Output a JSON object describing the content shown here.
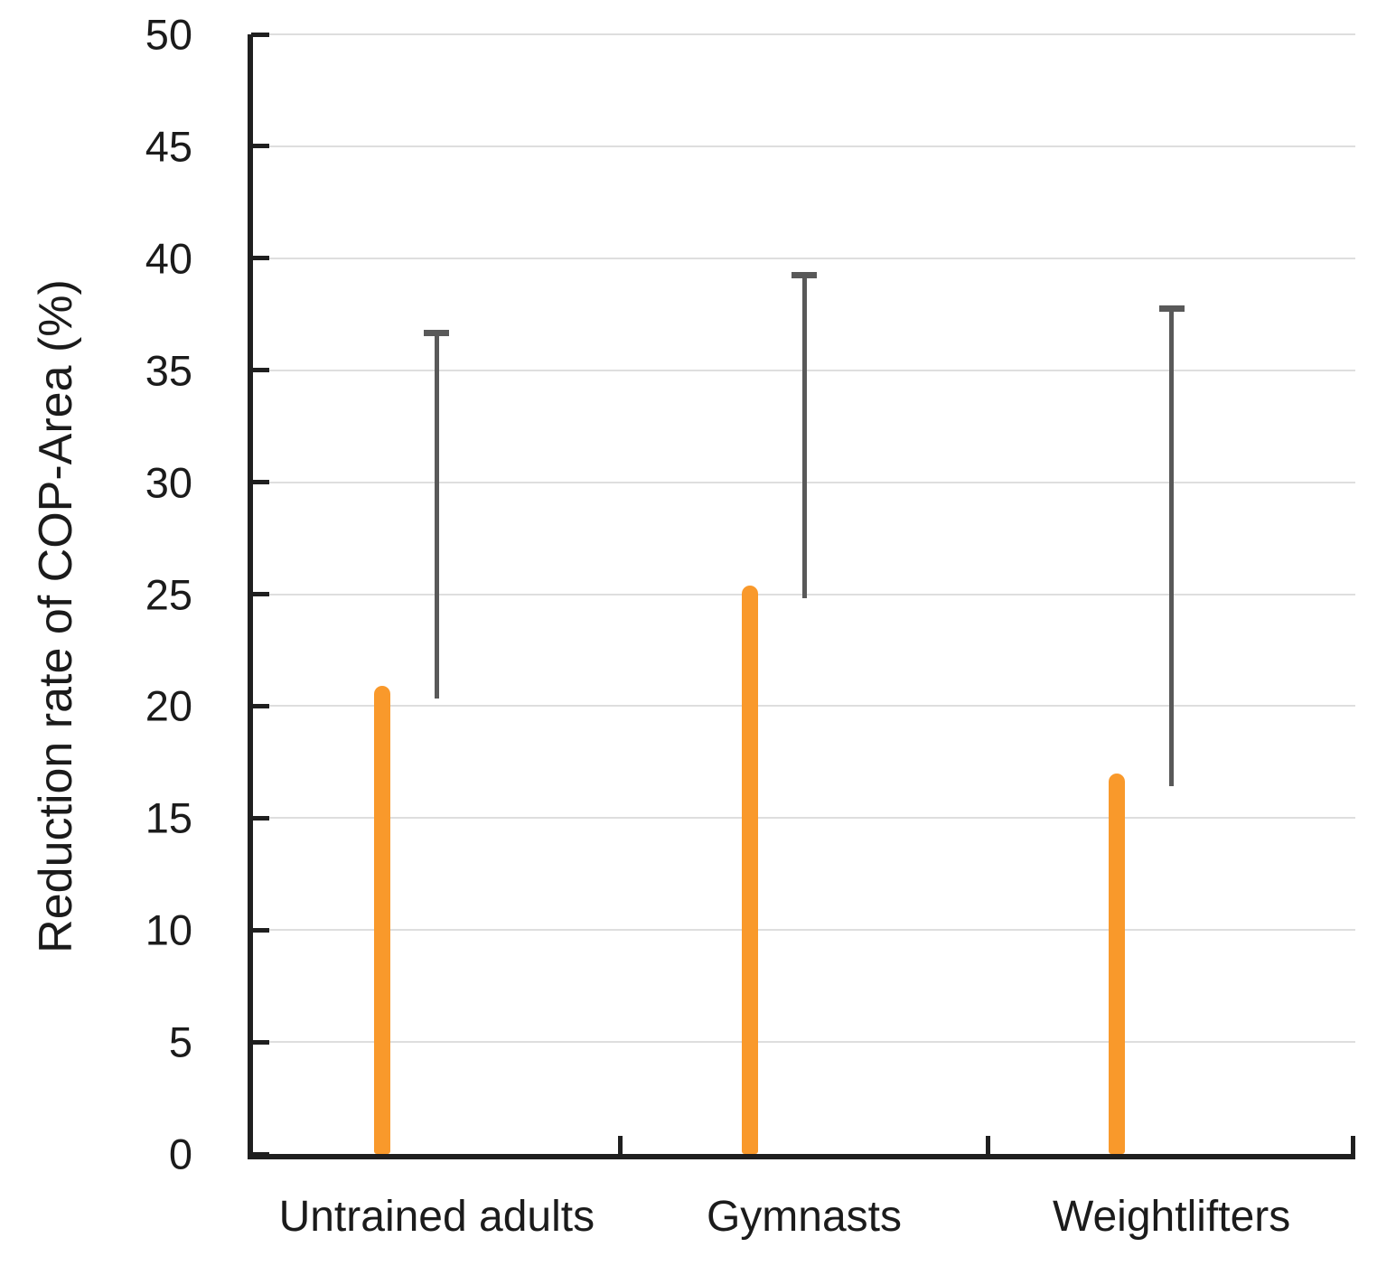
{
  "chart_data": {
    "type": "bar",
    "title": "",
    "xlabel": "",
    "ylabel": "Reduction rate of COP-Area (%)",
    "categories": [
      "Untrained adults",
      "Gymnasts",
      "Weightlifters"
    ],
    "values": [
      20.9,
      25.4,
      17.0
    ],
    "error_upper": [
      15.9,
      14.0,
      20.9
    ],
    "error_bar_tops": [
      36.8,
      39.4,
      37.9
    ],
    "ylim": [
      0,
      50
    ],
    "ytick_step": 5,
    "ytick_labels": [
      "0",
      "5",
      "10",
      "15",
      "20",
      "25",
      "30",
      "35",
      "40",
      "45",
      "50"
    ],
    "grid": true,
    "legend": false,
    "error_bars": "upper-only",
    "colors": {
      "background": "#FFFFFF",
      "bar_fill": "#FEF998",
      "bar_border": "#F9992B",
      "error_bar": "#595959",
      "gridline": "#DEDEDE",
      "axis": "#1F1F1F",
      "text": "#1B1B1B"
    }
  }
}
